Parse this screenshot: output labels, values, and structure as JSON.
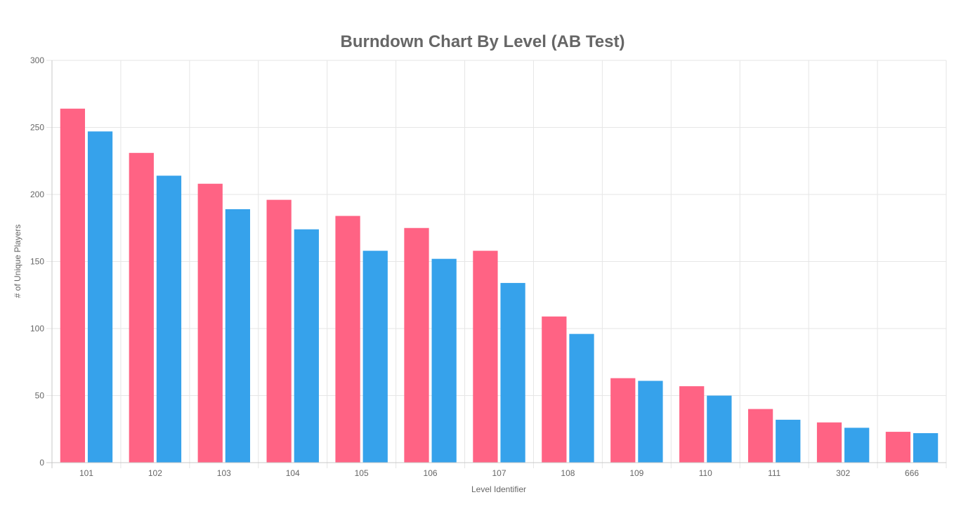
{
  "chart_data": {
    "type": "bar",
    "title": "Burndown Chart By Level (AB Test)",
    "xlabel": "Level Identifier",
    "ylabel": "# of Unique Players",
    "categories": [
      "101",
      "102",
      "103",
      "104",
      "105",
      "106",
      "107",
      "108",
      "109",
      "110",
      "111",
      "302",
      "666"
    ],
    "series": [
      {
        "color": "#ff6384",
        "values": [
          264,
          231,
          208,
          196,
          184,
          175,
          158,
          109,
          63,
          57,
          40,
          30,
          23
        ]
      },
      {
        "color": "#36a2eb",
        "values": [
          247,
          214,
          189,
          174,
          158,
          152,
          134,
          96,
          61,
          50,
          32,
          26,
          22
        ]
      }
    ],
    "ylim": [
      0,
      300
    ],
    "yticks": [
      0,
      50,
      100,
      150,
      200,
      250,
      300
    ],
    "grid": true,
    "legend": "none"
  }
}
